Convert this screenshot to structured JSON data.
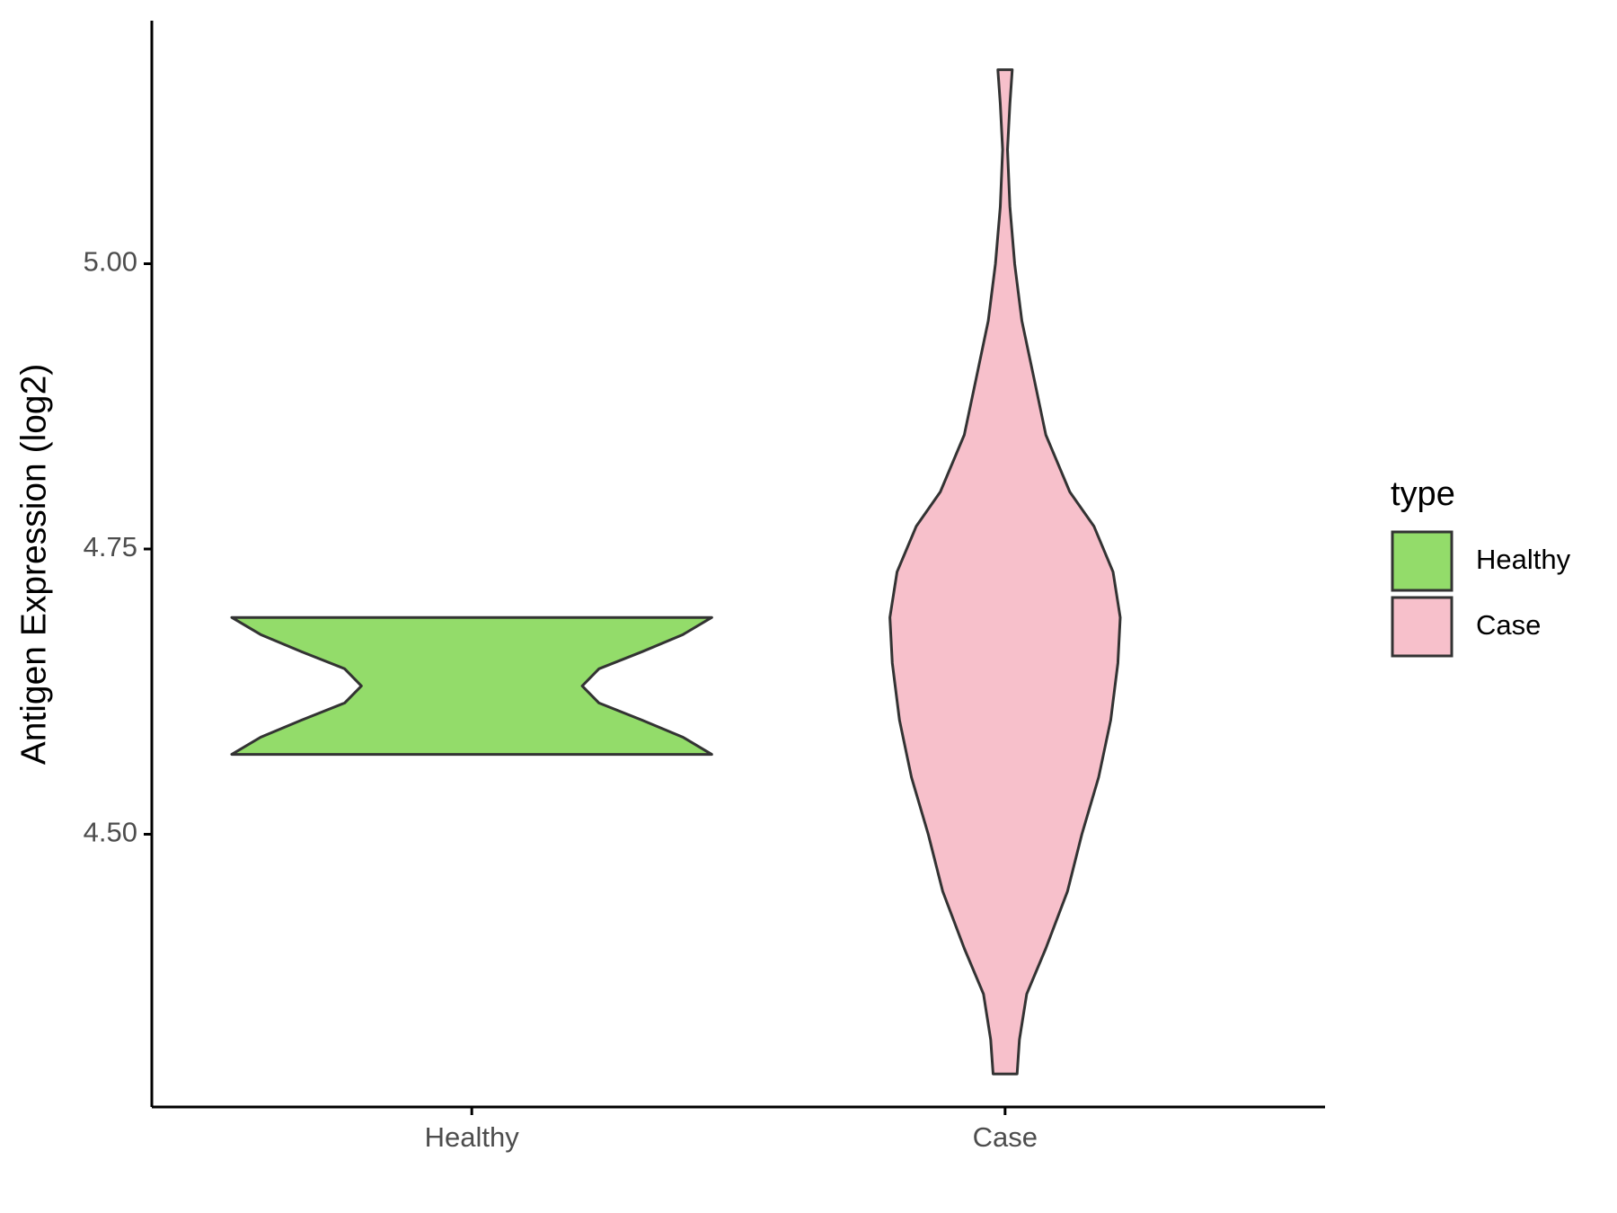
{
  "chart_data": {
    "type": "violin",
    "y_label": "Antigen Expression (log2)",
    "legend_title": "type",
    "categories": [
      "Healthy",
      "Case"
    ],
    "series": [
      {
        "name": "Healthy",
        "color": "#93dc6a",
        "y": [
          4.57,
          4.585,
          4.6,
          4.615,
          4.63,
          4.645,
          4.66,
          4.675,
          4.69
        ],
        "width": [
          1.0,
          0.88,
          0.71,
          0.53,
          0.46,
          0.53,
          0.71,
          0.88,
          1.0
        ]
      },
      {
        "name": "Case",
        "color": "#f7c0cb",
        "y": [
          4.29,
          4.32,
          4.36,
          4.4,
          4.45,
          4.5,
          4.55,
          4.6,
          4.65,
          4.69,
          4.73,
          4.77,
          4.8,
          4.85,
          4.9,
          4.95,
          5.0,
          5.05,
          5.1,
          5.14,
          5.17
        ],
        "width": [
          0.05,
          0.06,
          0.09,
          0.17,
          0.26,
          0.32,
          0.39,
          0.44,
          0.47,
          0.48,
          0.45,
          0.37,
          0.27,
          0.17,
          0.12,
          0.07,
          0.04,
          0.02,
          0.01,
          0.02,
          0.03
        ]
      }
    ],
    "ylim": [
      4.261,
      5.213
    ],
    "yticks": [
      {
        "value": 4.5,
        "label": "4.50"
      },
      {
        "value": 4.75,
        "label": "4.75"
      },
      {
        "value": 5.0,
        "label": "5.00"
      }
    ],
    "grid": false
  }
}
